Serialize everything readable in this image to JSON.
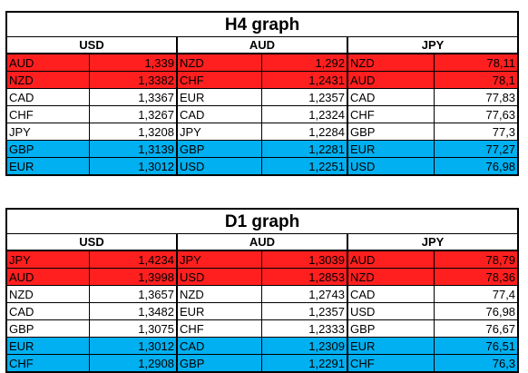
{
  "h4": {
    "title": "H4 graph",
    "headers": [
      "USD",
      "AUD",
      "JPY"
    ],
    "rows": [
      {
        "hl": "red",
        "cells": [
          [
            "AUD",
            "1,339"
          ],
          [
            "NZD",
            "1,292"
          ],
          [
            "NZD",
            "78,11"
          ]
        ]
      },
      {
        "hl": "red",
        "cells": [
          [
            "NZD",
            "1,3382"
          ],
          [
            "CHF",
            "1,2431"
          ],
          [
            "AUD",
            "78,1"
          ]
        ]
      },
      {
        "hl": "",
        "cells": [
          [
            "CAD",
            "1,3367"
          ],
          [
            "EUR",
            "1,2357"
          ],
          [
            "CAD",
            "77,83"
          ]
        ]
      },
      {
        "hl": "",
        "cells": [
          [
            "CHF",
            "1,3267"
          ],
          [
            "CAD",
            "1,2324"
          ],
          [
            "CHF",
            "77,63"
          ]
        ]
      },
      {
        "hl": "",
        "cells": [
          [
            "JPY",
            "1,3208"
          ],
          [
            "JPY",
            "1,2284"
          ],
          [
            "GBP",
            "77,3"
          ]
        ]
      },
      {
        "hl": "blue",
        "cells": [
          [
            "GBP",
            "1,3139"
          ],
          [
            "GBP",
            "1,2281"
          ],
          [
            "EUR",
            "77,27"
          ]
        ]
      },
      {
        "hl": "blue",
        "cells": [
          [
            "EUR",
            "1,3012"
          ],
          [
            "USD",
            "1,2251"
          ],
          [
            "USD",
            "76,98"
          ]
        ]
      }
    ]
  },
  "d1": {
    "title": "D1 graph",
    "headers": [
      "USD",
      "AUD",
      "JPY"
    ],
    "rows": [
      {
        "hl": "red",
        "cells": [
          [
            "JPY",
            "1,4234"
          ],
          [
            "JPY",
            "1,3039"
          ],
          [
            "AUD",
            "78,79"
          ]
        ]
      },
      {
        "hl": "red",
        "cells": [
          [
            "AUD",
            "1,3998"
          ],
          [
            "USD",
            "1,2853"
          ],
          [
            "NZD",
            "78,36"
          ]
        ]
      },
      {
        "hl": "",
        "cells": [
          [
            "NZD",
            "1,3657"
          ],
          [
            "NZD",
            "1,2743"
          ],
          [
            "CAD",
            "77,4"
          ]
        ]
      },
      {
        "hl": "",
        "cells": [
          [
            "CAD",
            "1,3482"
          ],
          [
            "EUR",
            "1,2357"
          ],
          [
            "USD",
            "76,98"
          ]
        ]
      },
      {
        "hl": "",
        "cells": [
          [
            "GBP",
            "1,3075"
          ],
          [
            "CHF",
            "1,2333"
          ],
          [
            "GBP",
            "76,67"
          ]
        ]
      },
      {
        "hl": "blue",
        "cells": [
          [
            "EUR",
            "1,3012"
          ],
          [
            "CAD",
            "1,2309"
          ],
          [
            "EUR",
            "76,51"
          ]
        ]
      },
      {
        "hl": "blue",
        "cells": [
          [
            "CHF",
            "1,2908"
          ],
          [
            "GBP",
            "1,2291"
          ],
          [
            "CHF",
            "76,3"
          ]
        ]
      }
    ]
  },
  "colors": {
    "red": "#ff1f1f",
    "blue": "#00b0f0"
  }
}
